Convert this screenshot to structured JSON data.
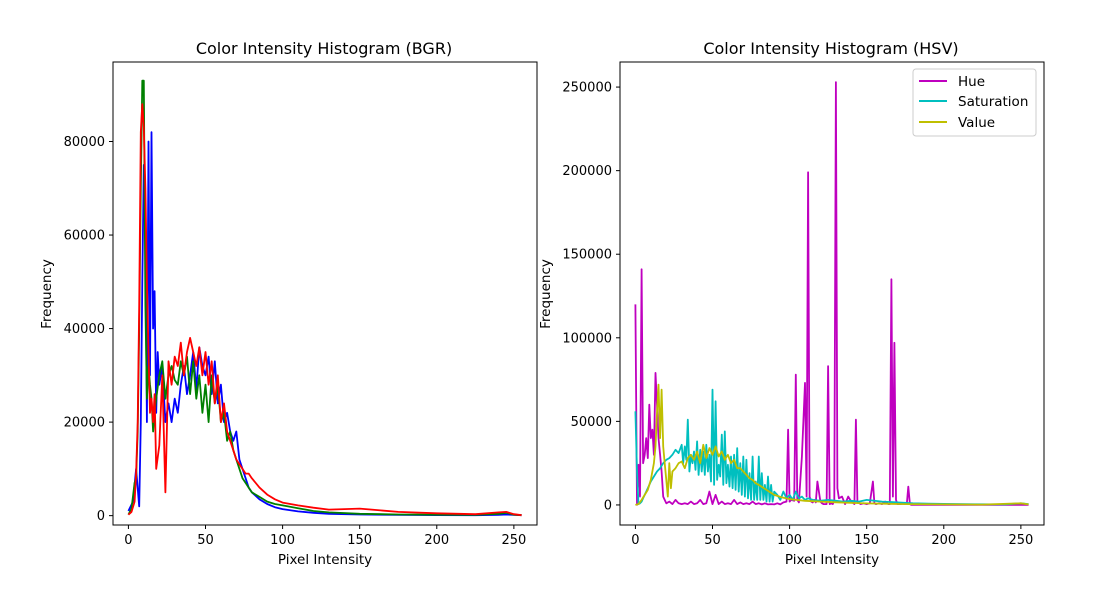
{
  "chart_data": [
    {
      "type": "line",
      "title": "Color Intensity Histogram (BGR)",
      "xlabel": "Pixel Intensity",
      "ylabel": "Frequency",
      "xlim": [
        -10,
        265
      ],
      "ylim": [
        -2000,
        97000
      ],
      "xticks": [
        0,
        50,
        100,
        150,
        200,
        250
      ],
      "xtick_labels": [
        "0",
        "50",
        "100",
        "150",
        "200",
        "250"
      ],
      "yticks": [
        0,
        20000,
        40000,
        60000,
        80000
      ],
      "ytick_labels": [
        "0",
        "20000",
        "40000",
        "60000",
        "80000"
      ],
      "legend": [],
      "grid": false,
      "series": [
        {
          "color": "#0000ff",
          "x": [
            0,
            3,
            5,
            7,
            8,
            9,
            10,
            11,
            12,
            13,
            14,
            15,
            16,
            17,
            18,
            19,
            20,
            22,
            24,
            26,
            28,
            30,
            32,
            34,
            36,
            38,
            40,
            42,
            44,
            46,
            48,
            50,
            52,
            54,
            56,
            58,
            60,
            62,
            64,
            66,
            68,
            70,
            72,
            74,
            76,
            78,
            80,
            85,
            90,
            95,
            100,
            110,
            120,
            130,
            150,
            175,
            200,
            225,
            240,
            245,
            250,
            255
          ],
          "values": [
            1000,
            3000,
            10000,
            2000,
            20000,
            50000,
            75000,
            60000,
            20000,
            80000,
            30000,
            82000,
            40000,
            48000,
            22000,
            35000,
            28000,
            32000,
            20000,
            24000,
            20000,
            25000,
            22000,
            28000,
            32000,
            26000,
            30000,
            35000,
            27000,
            36000,
            32000,
            30000,
            34000,
            26000,
            33000,
            24000,
            28000,
            20000,
            22000,
            18000,
            16000,
            18000,
            12000,
            10000,
            8000,
            6000,
            5000,
            3500,
            2500,
            1800,
            1400,
            900,
            600,
            400,
            250,
            150,
            120,
            100,
            150,
            250,
            150,
            100
          ]
        },
        {
          "color": "#008000",
          "x": [
            0,
            2,
            4,
            5,
            6,
            7,
            8,
            9,
            10,
            11,
            12,
            13,
            14,
            15,
            16,
            17,
            18,
            20,
            22,
            24,
            26,
            28,
            30,
            32,
            34,
            36,
            38,
            40,
            42,
            44,
            46,
            48,
            50,
            52,
            54,
            56,
            58,
            60,
            62,
            64,
            66,
            68,
            70,
            72,
            74,
            76,
            78,
            80,
            85,
            90,
            95,
            100,
            110,
            120,
            130,
            150,
            175,
            200,
            225,
            240,
            245,
            250,
            255
          ],
          "values": [
            200,
            1500,
            7000,
            8000,
            18000,
            40000,
            70000,
            93000,
            93000,
            45000,
            25000,
            32000,
            28000,
            25000,
            18000,
            22000,
            25000,
            30000,
            33000,
            25000,
            30000,
            32000,
            29000,
            28000,
            33000,
            30000,
            34000,
            26000,
            33000,
            25000,
            30000,
            22000,
            28000,
            20000,
            30000,
            24000,
            28000,
            20000,
            22000,
            16000,
            18000,
            14000,
            12000,
            10000,
            8000,
            7000,
            6000,
            5000,
            4000,
            3000,
            2500,
            2200,
            1600,
            1000,
            700,
            400,
            250,
            200,
            150,
            400,
            600,
            200,
            100
          ]
        },
        {
          "color": "#ff0000",
          "x": [
            0,
            2,
            4,
            5,
            6,
            7,
            8,
            9,
            10,
            11,
            12,
            13,
            14,
            15,
            16,
            17,
            18,
            20,
            22,
            24,
            26,
            28,
            30,
            32,
            34,
            36,
            38,
            40,
            42,
            44,
            46,
            48,
            50,
            52,
            54,
            56,
            58,
            60,
            62,
            64,
            66,
            68,
            70,
            72,
            74,
            76,
            78,
            80,
            85,
            90,
            95,
            100,
            110,
            120,
            130,
            150,
            175,
            200,
            225,
            240,
            245,
            250,
            255
          ],
          "values": [
            200,
            800,
            3000,
            9000,
            20000,
            45000,
            82000,
            88000,
            83000,
            70000,
            50000,
            35000,
            22000,
            25000,
            20000,
            26000,
            10000,
            15000,
            30000,
            5000,
            33000,
            28000,
            34000,
            32000,
            37000,
            30000,
            35000,
            38000,
            35000,
            32000,
            36000,
            30000,
            35000,
            28000,
            33000,
            24000,
            30000,
            20000,
            24000,
            18000,
            16000,
            14000,
            12000,
            11000,
            10000,
            9000,
            9000,
            8000,
            6000,
            4500,
            3500,
            2800,
            2200,
            1700,
            1300,
            1500,
            800,
            500,
            300,
            700,
            800,
            300,
            100
          ]
        }
      ]
    },
    {
      "type": "line",
      "title": "Color Intensity Histogram (HSV)",
      "xlabel": "Pixel Intensity",
      "ylabel": "Frequency",
      "xlim": [
        -10,
        265
      ],
      "ylim": [
        -12000,
        265000
      ],
      "xticks": [
        0,
        50,
        100,
        150,
        200,
        250
      ],
      "xtick_labels": [
        "0",
        "50",
        "100",
        "150",
        "200",
        "250"
      ],
      "yticks": [
        0,
        50000,
        100000,
        150000,
        200000,
        250000
      ],
      "ytick_labels": [
        "0",
        "50000",
        "100000",
        "150000",
        "200000",
        "250000"
      ],
      "legend_position": "top-right",
      "grid": false,
      "series": [
        {
          "name": "Hue",
          "color": "#bf00bf",
          "x": [
            0,
            1,
            2,
            3,
            4,
            5,
            6,
            7,
            8,
            9,
            10,
            11,
            12,
            13,
            14,
            15,
            16,
            17,
            18,
            19,
            20,
            22,
            24,
            26,
            28,
            30,
            32,
            34,
            36,
            38,
            40,
            42,
            44,
            46,
            48,
            50,
            52,
            54,
            56,
            58,
            60,
            62,
            64,
            66,
            68,
            70,
            72,
            74,
            76,
            78,
            80,
            82,
            84,
            86,
            88,
            90,
            92,
            94,
            96,
            98,
            99,
            100,
            101,
            103,
            104,
            105,
            106,
            108,
            110,
            111,
            112,
            113,
            114,
            115,
            116,
            117,
            118,
            120,
            121,
            122,
            124,
            125,
            126,
            127,
            128,
            129,
            130,
            131,
            132,
            134,
            136,
            138,
            140,
            142,
            143,
            144,
            146,
            148,
            150,
            152,
            154,
            155,
            156,
            158,
            160,
            162,
            164,
            165,
            166,
            167,
            168,
            169,
            170,
            172,
            174,
            176,
            177,
            178,
            179,
            180,
            200,
            220,
            240,
            250,
            255
          ],
          "values": [
            120000,
            0,
            24000,
            5000,
            141000,
            25000,
            30000,
            40000,
            28000,
            60000,
            40000,
            45000,
            30000,
            79000,
            60000,
            40000,
            30000,
            20000,
            5000,
            3000,
            1000,
            2000,
            500,
            3000,
            1000,
            500,
            1000,
            500,
            2000,
            500,
            1000,
            3000,
            500,
            1000,
            8000,
            500,
            6000,
            500,
            2000,
            500,
            1000,
            500,
            3000,
            500,
            1500,
            500,
            1000,
            500,
            2000,
            500,
            1000,
            300,
            1000,
            300,
            500,
            300,
            1000,
            300,
            1500,
            2000,
            45000,
            2000,
            3000,
            2500,
            78000,
            3000,
            1500,
            29000,
            73000,
            5000,
            199000,
            5000,
            2000,
            1500,
            3000,
            1500,
            14000,
            2000,
            1000,
            500,
            500,
            83000,
            500,
            1000,
            500,
            3000,
            253000,
            10000,
            4000,
            5000,
            500,
            5000,
            2000,
            500,
            51000,
            2000,
            500,
            1000,
            500,
            1000,
            14000,
            1000,
            500,
            1000,
            500,
            2000,
            500,
            500,
            135000,
            5000,
            97000,
            3000,
            500,
            500,
            1000,
            500,
            11000,
            500,
            0,
            0,
            0,
            0,
            0,
            0,
            0
          ]
        },
        {
          "name": "Saturation",
          "color": "#00bfbf",
          "x": [
            0,
            1,
            2,
            3,
            4,
            5,
            6,
            8,
            10,
            12,
            14,
            16,
            18,
            20,
            22,
            24,
            26,
            28,
            30,
            31,
            32,
            33,
            34,
            35,
            36,
            37,
            38,
            39,
            40,
            41,
            42,
            43,
            44,
            45,
            46,
            47,
            48,
            49,
            50,
            51,
            52,
            53,
            54,
            55,
            56,
            57,
            58,
            59,
            60,
            61,
            62,
            63,
            64,
            65,
            66,
            67,
            68,
            69,
            70,
            71,
            72,
            73,
            74,
            75,
            76,
            77,
            78,
            79,
            80,
            81,
            82,
            83,
            84,
            85,
            86,
            87,
            88,
            89,
            90,
            92,
            94,
            96,
            98,
            100,
            102,
            104,
            106,
            108,
            110,
            112,
            115,
            120,
            125,
            130,
            135,
            140,
            145,
            150,
            160,
            170,
            180,
            190,
            200,
            220,
            240,
            250,
            255
          ],
          "values": [
            56000,
            20000,
            500,
            1000,
            2000,
            4000,
            6000,
            10000,
            14000,
            17000,
            20000,
            22000,
            25000,
            27000,
            28000,
            30000,
            33000,
            31000,
            36000,
            25000,
            35000,
            27000,
            51000,
            20000,
            30000,
            25000,
            32000,
            21000,
            38000,
            18000,
            33000,
            20000,
            32000,
            18000,
            36000,
            20000,
            30000,
            14000,
            69000,
            12000,
            62000,
            15000,
            24000,
            17000,
            42000,
            12000,
            44000,
            13000,
            24000,
            11000,
            29000,
            10000,
            30000,
            9000,
            34000,
            8000,
            25000,
            6000,
            29000,
            5000,
            27000,
            4000,
            19000,
            3000,
            29000,
            3000,
            14000,
            3000,
            29000,
            3000,
            19000,
            3000,
            12000,
            2000,
            17000,
            2000,
            12000,
            2000,
            8000,
            6000,
            3000,
            8000,
            4000,
            6000,
            3000,
            8000,
            4000,
            5000,
            3000,
            4000,
            3000,
            2500,
            3000,
            2500,
            2000,
            2500,
            2000,
            3000,
            2000,
            1500,
            1000,
            800,
            600,
            400,
            300,
            1000,
            500
          ]
        },
        {
          "name": "Value",
          "color": "#bfbf00",
          "x": [
            0,
            2,
            4,
            6,
            8,
            10,
            12,
            13,
            14,
            15,
            16,
            17,
            18,
            19,
            20,
            21,
            22,
            23,
            24,
            26,
            28,
            30,
            32,
            34,
            36,
            38,
            40,
            42,
            44,
            46,
            48,
            50,
            52,
            54,
            56,
            58,
            60,
            62,
            64,
            66,
            68,
            70,
            72,
            74,
            76,
            78,
            80,
            85,
            90,
            95,
            100,
            110,
            120,
            130,
            140,
            150,
            175,
            200,
            225,
            250,
            255
          ],
          "values": [
            0,
            500,
            3000,
            6000,
            9000,
            15000,
            25000,
            35000,
            55000,
            72000,
            40000,
            69000,
            35000,
            25000,
            15000,
            5000,
            25000,
            10000,
            20000,
            22000,
            25000,
            26000,
            22000,
            28000,
            30000,
            27000,
            32000,
            25000,
            36000,
            28000,
            34000,
            30000,
            35000,
            29000,
            32000,
            27000,
            30000,
            25000,
            27000,
            22000,
            22000,
            20000,
            18000,
            16000,
            15000,
            13000,
            12000,
            9000,
            6000,
            4500,
            3500,
            2500,
            2000,
            1600,
            1200,
            900,
            500,
            300,
            200,
            1000,
            300
          ]
        }
      ]
    }
  ]
}
